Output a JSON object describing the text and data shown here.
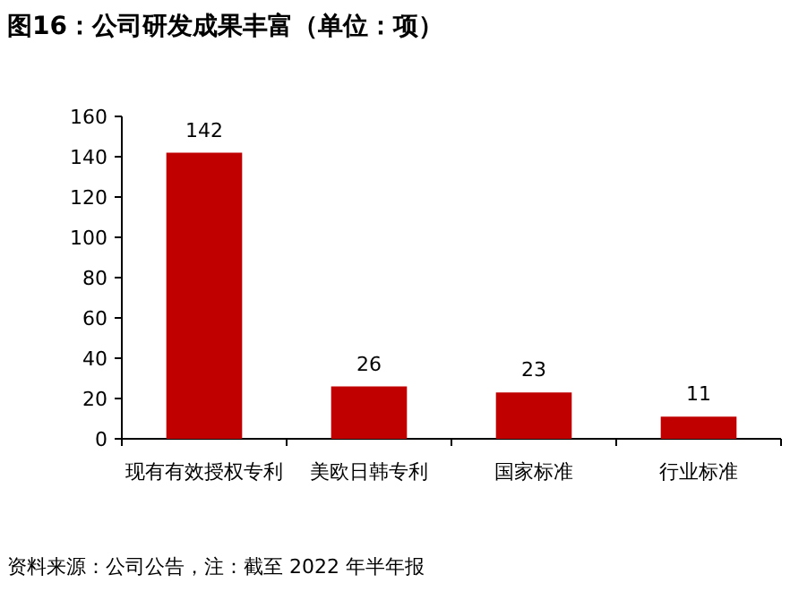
{
  "chart_data": {
    "type": "bar",
    "title": "图16：公司研发成果丰富（单位：项）",
    "categories": [
      "现有有效授权专利",
      "美欧日韩专利",
      "国家标准",
      "行业标准"
    ],
    "values": [
      142,
      26,
      23,
      11
    ],
    "color": "#c00000",
    "ylim": [
      0,
      160
    ],
    "yticks": [
      0,
      20,
      40,
      60,
      80,
      100,
      120,
      140,
      160
    ],
    "data_labels": true,
    "grid": false,
    "annotations": [
      "资料来源：公司公告，注：截至 2022 年半年报"
    ]
  }
}
